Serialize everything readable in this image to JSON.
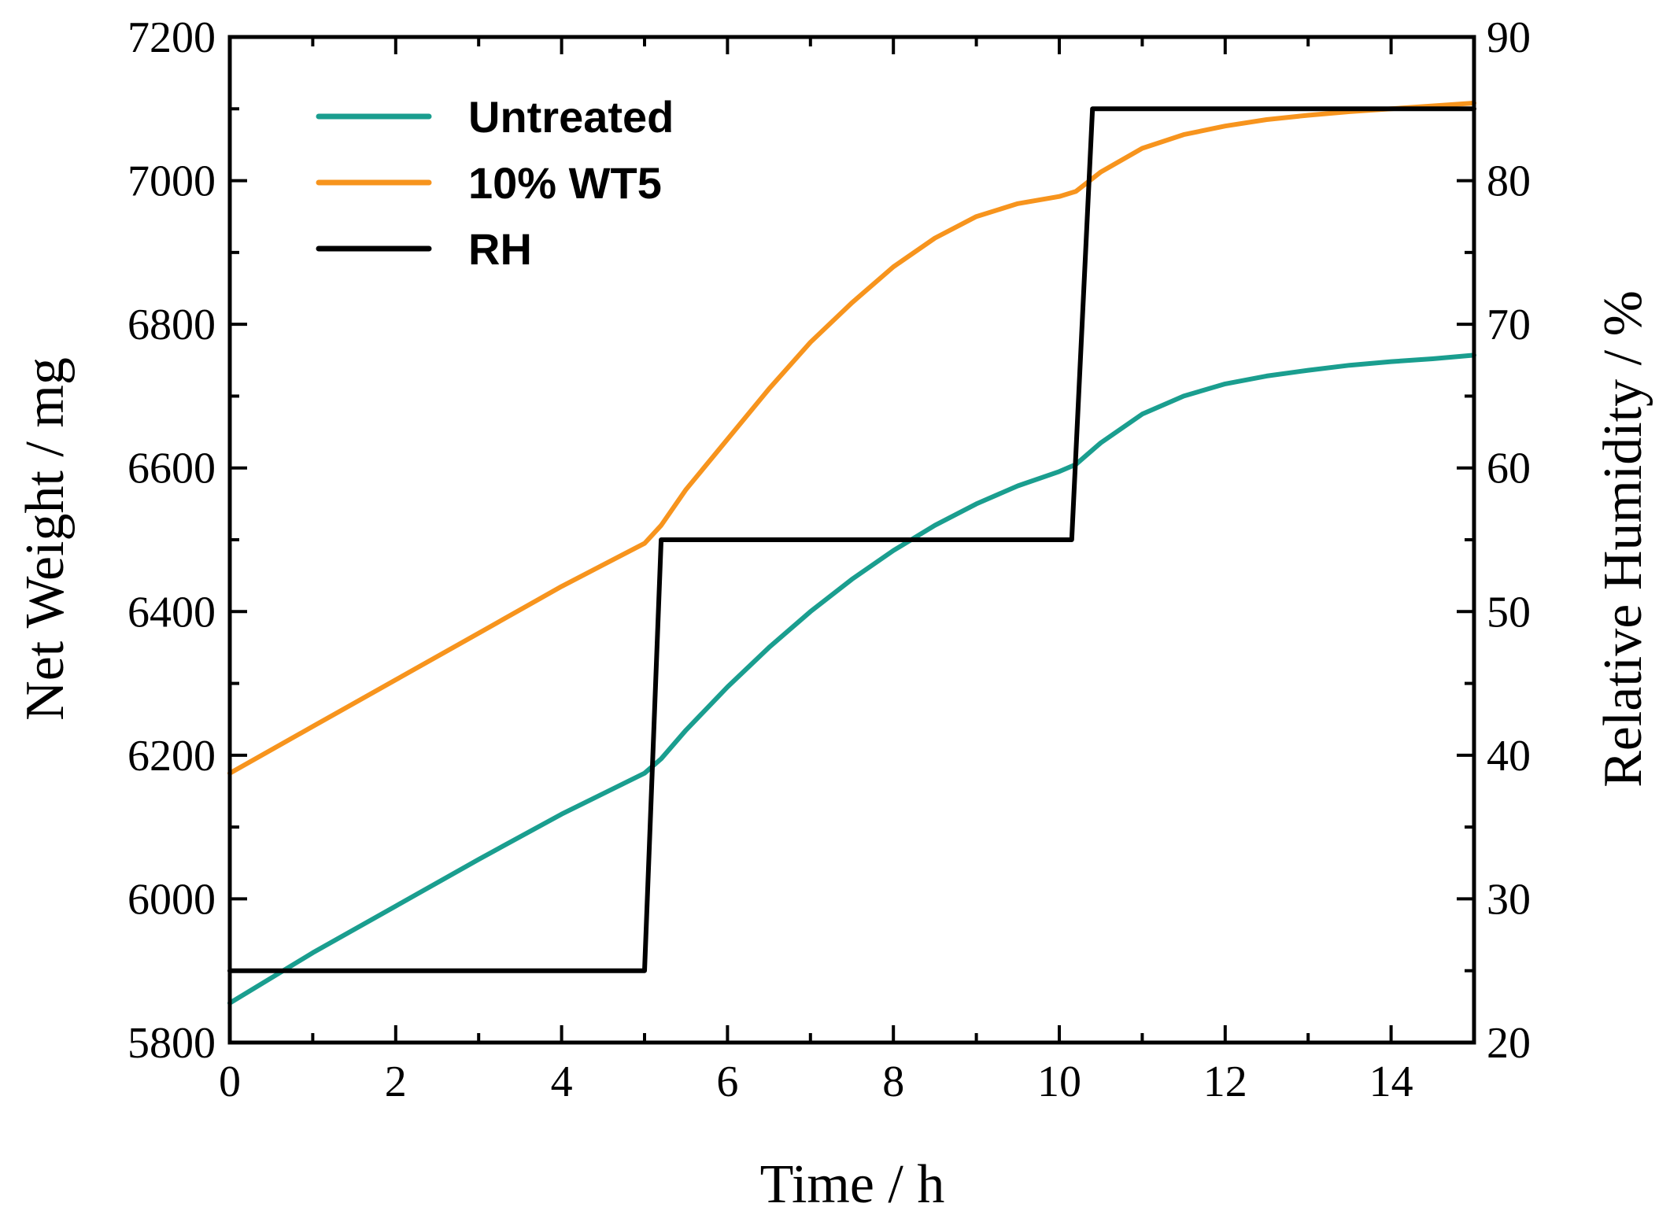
{
  "chart_data": {
    "type": "line",
    "title": "",
    "xlabel": "Time / h",
    "ylabel": "Net Weight / mg",
    "y2label": "Relative Humidity / %",
    "xlim": [
      0,
      15
    ],
    "ylim": [
      5800,
      7200
    ],
    "y2lim": [
      20,
      90
    ],
    "xticks": [
      0,
      2,
      4,
      6,
      8,
      10,
      12,
      14
    ],
    "yticks": [
      5800,
      6000,
      6200,
      6400,
      6600,
      6800,
      7000,
      7200
    ],
    "y2ticks": [
      20,
      30,
      40,
      50,
      60,
      70,
      80,
      90
    ],
    "legend_position": "top-left",
    "series": [
      {
        "name": "Untreated",
        "axis": "left",
        "color": "#1a9e8f",
        "x": [
          0,
          1,
          2,
          3,
          4,
          5,
          5.2,
          5.5,
          6,
          6.5,
          7,
          7.5,
          8,
          8.5,
          9,
          9.5,
          10,
          10.2,
          10.5,
          11,
          11.5,
          12,
          12.5,
          13,
          13.5,
          14,
          14.5,
          15
        ],
        "y": [
          5855,
          5925,
          5990,
          6055,
          6118,
          6175,
          6195,
          6235,
          6295,
          6350,
          6400,
          6445,
          6485,
          6520,
          6550,
          6575,
          6595,
          6605,
          6635,
          6675,
          6700,
          6717,
          6728,
          6736,
          6743,
          6748,
          6752,
          6757
        ]
      },
      {
        "name": "10% WT5",
        "axis": "left",
        "color": "#f7941d",
        "x": [
          0,
          1,
          2,
          3,
          4,
          5,
          5.2,
          5.5,
          6,
          6.5,
          7,
          7.5,
          8,
          8.5,
          9,
          9.5,
          10,
          10.2,
          10.5,
          11,
          11.5,
          12,
          12.5,
          13,
          13.5,
          14,
          14.5,
          15
        ],
        "y": [
          6175,
          6240,
          6305,
          6370,
          6435,
          6495,
          6520,
          6570,
          6640,
          6710,
          6775,
          6830,
          6880,
          6920,
          6950,
          6968,
          6978,
          6985,
          7012,
          7045,
          7064,
          7076,
          7085,
          7091,
          7096,
          7100,
          7104,
          7108
        ]
      },
      {
        "name": "RH",
        "axis": "right",
        "color": "#000000",
        "x": [
          0,
          5.0,
          5.2,
          10.15,
          10.4,
          15
        ],
        "y": [
          25,
          25,
          55,
          55,
          85,
          85
        ]
      }
    ]
  }
}
